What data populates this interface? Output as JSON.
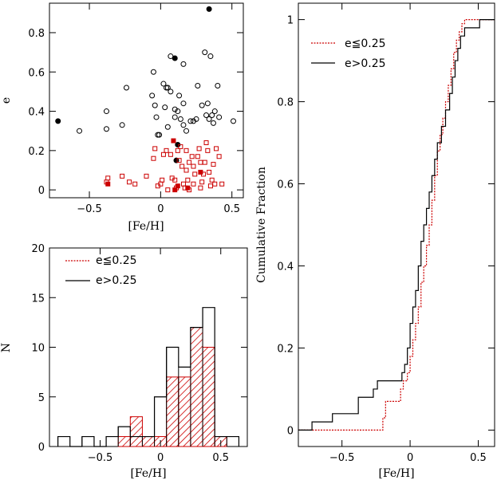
{
  "colors": {
    "low_e": "#cc0000",
    "high_e": "#000000"
  },
  "chart_data": [
    {
      "id": "scatter",
      "type": "scatter",
      "xlabel": "[Fe/H]",
      "ylabel": "e",
      "xlim": [
        -0.78,
        0.58
      ],
      "ylim": [
        -0.04,
        0.95
      ],
      "xticks": [
        -0.5,
        0,
        0.5
      ],
      "xtick_labels": [
        "−0.5",
        "0",
        "0.5"
      ],
      "yticks": [
        0,
        0.2,
        0.4,
        0.6,
        0.8
      ],
      "ytick_labels": [
        "0",
        "0.2",
        "0.4",
        "0.6",
        "0.8"
      ],
      "series": [
        {
          "symbol": "open-circle",
          "color": "#000000",
          "points": [
            [
              -0.57,
              0.3
            ],
            [
              -0.38,
              0.4
            ],
            [
              -0.38,
              0.31
            ],
            [
              -0.27,
              0.33
            ],
            [
              -0.24,
              0.52
            ],
            [
              -0.06,
              0.48
            ],
            [
              -0.05,
              0.6
            ],
            [
              -0.04,
              0.43
            ],
            [
              -0.03,
              0.37
            ],
            [
              -0.02,
              0.28
            ],
            [
              -0.01,
              0.28
            ],
            [
              0.02,
              0.54
            ],
            [
              0.03,
              0.42
            ],
            [
              0.04,
              0.52
            ],
            [
              0.05,
              0.32
            ],
            [
              0.05,
              0.52
            ],
            [
              0.07,
              0.68
            ],
            [
              0.07,
              0.5
            ],
            [
              0.1,
              0.41
            ],
            [
              0.1,
              0.37
            ],
            [
              0.12,
              0.4
            ],
            [
              0.13,
              0.48
            ],
            [
              0.14,
              0.36
            ],
            [
              0.16,
              0.64
            ],
            [
              0.16,
              0.44
            ],
            [
              0.16,
              0.33
            ],
            [
              0.18,
              0.3
            ],
            [
              0.21,
              0.35
            ],
            [
              0.23,
              0.35
            ],
            [
              0.25,
              0.36
            ],
            [
              0.26,
              0.53
            ],
            [
              0.29,
              0.43
            ],
            [
              0.31,
              0.7
            ],
            [
              0.32,
              0.38
            ],
            [
              0.33,
              0.44
            ],
            [
              0.34,
              0.36
            ],
            [
              0.35,
              0.68
            ],
            [
              0.36,
              0.38
            ],
            [
              0.37,
              0.34
            ],
            [
              0.38,
              0.4
            ],
            [
              0.4,
              0.53
            ],
            [
              0.41,
              0.37
            ],
            [
              0.51,
              0.35
            ]
          ]
        },
        {
          "symbol": "filled-circle",
          "color": "#000000",
          "points": [
            [
              -0.72,
              0.35
            ],
            [
              0.1,
              0.67
            ],
            [
              0.11,
              0.15
            ],
            [
              0.12,
              0.23
            ],
            [
              0.34,
              0.92
            ]
          ]
        },
        {
          "symbol": "open-square",
          "color": "#cc0000",
          "points": [
            [
              -0.38,
              0.04
            ],
            [
              -0.37,
              0.06
            ],
            [
              -0.27,
              0.07
            ],
            [
              -0.22,
              0.04
            ],
            [
              -0.18,
              0.03
            ],
            [
              -0.1,
              0.07
            ],
            [
              -0.05,
              0.16
            ],
            [
              -0.04,
              0.21
            ],
            [
              -0.02,
              0.02
            ],
            [
              0.0,
              0.03
            ],
            [
              0.01,
              0.05
            ],
            [
              0.02,
              0.18
            ],
            [
              0.04,
              0.2
            ],
            [
              0.05,
              0.0
            ],
            [
              0.07,
              0.18
            ],
            [
              0.08,
              0.06
            ],
            [
              0.1,
              0.05
            ],
            [
              0.11,
              0.01
            ],
            [
              0.12,
              0.2
            ],
            [
              0.13,
              0.15
            ],
            [
              0.14,
              0.22
            ],
            [
              0.15,
              0.12
            ],
            [
              0.16,
              0.03
            ],
            [
              0.17,
              0.01
            ],
            [
              0.18,
              0.1
            ],
            [
              0.18,
              0.2
            ],
            [
              0.19,
              0.05
            ],
            [
              0.2,
              0.0
            ],
            [
              0.2,
              0.14
            ],
            [
              0.22,
              0.17
            ],
            [
              0.23,
              0.12
            ],
            [
              0.23,
              0.03
            ],
            [
              0.24,
              0.08
            ],
            [
              0.26,
              0.17
            ],
            [
              0.27,
              0.21
            ],
            [
              0.28,
              0.14
            ],
            [
              0.28,
              0.01
            ],
            [
              0.29,
              0.04
            ],
            [
              0.3,
              0.08
            ],
            [
              0.31,
              0.14
            ],
            [
              0.32,
              0.24
            ],
            [
              0.33,
              0.2
            ],
            [
              0.34,
              0.09
            ],
            [
              0.35,
              0.02
            ],
            [
              0.36,
              0.05
            ],
            [
              0.37,
              0.13
            ],
            [
              0.38,
              0.03
            ],
            [
              0.39,
              0.21
            ],
            [
              0.41,
              0.17
            ],
            [
              0.43,
              0.03
            ]
          ]
        },
        {
          "symbol": "filled-square",
          "color": "#cc0000",
          "points": [
            [
              -0.37,
              0.03
            ],
            [
              0.09,
              0.25
            ],
            [
              0.1,
              0.0
            ],
            [
              0.12,
              0.02
            ],
            [
              0.19,
              0.01
            ],
            [
              0.28,
              0.09
            ]
          ]
        }
      ]
    },
    {
      "id": "histogram",
      "type": "bar",
      "xlabel": "[Fe/H]",
      "ylabel": "N",
      "xlim": [
        -0.92,
        0.72
      ],
      "ylim": [
        0,
        20
      ],
      "xticks": [
        -0.5,
        0,
        0.5
      ],
      "xtick_labels": [
        "−0.5",
        "0",
        "0.5"
      ],
      "yticks": [
        0,
        5,
        10,
        15,
        20
      ],
      "ytick_labels": [
        "0",
        "5",
        "10",
        "15",
        "20"
      ],
      "bin_edges": [
        -0.85,
        -0.75,
        -0.65,
        -0.55,
        -0.45,
        -0.35,
        -0.25,
        -0.15,
        -0.05,
        0.05,
        0.15,
        0.25,
        0.35,
        0.45,
        0.55,
        0.65
      ],
      "series": [
        {
          "name": "e≦0.25",
          "style": "hatched",
          "color": "#cc0000",
          "counts": [
            0,
            0,
            0,
            0,
            0,
            1,
            3,
            1,
            1,
            7,
            7,
            12,
            10,
            1,
            0
          ]
        },
        {
          "name": "e>0.25",
          "style": "outline",
          "color": "#000000",
          "counts": [
            1,
            0,
            1,
            0,
            1,
            2,
            1,
            1,
            5,
            10,
            8,
            12,
            14,
            1,
            1
          ]
        }
      ],
      "legend": {
        "position": "top-left",
        "entries": [
          {
            "label": "e≦0.25",
            "color": "#cc0000",
            "style": "dotted"
          },
          {
            "label": "e>0.25",
            "color": "#000000",
            "style": "solid"
          }
        ]
      }
    },
    {
      "id": "cumulative",
      "type": "line",
      "step": true,
      "xlabel": "[Fe/H]",
      "ylabel": "Cumulative Fraction",
      "xlim": [
        -0.82,
        0.62
      ],
      "ylim": [
        -0.04,
        1.04
      ],
      "xticks": [
        -0.5,
        0,
        0.5
      ],
      "xtick_labels": [
        "−0.5",
        "0",
        "0.5"
      ],
      "yticks": [
        0,
        0.2,
        0.4,
        0.6,
        0.8,
        1
      ],
      "ytick_labels": [
        "0",
        "0.2",
        "0.4",
        "0.6",
        "0.8",
        "1"
      ],
      "series": [
        {
          "name": "e≦0.25",
          "color": "#cc0000",
          "style": "dotted",
          "x": [
            -0.82,
            -0.22,
            -0.2,
            -0.18,
            -0.1,
            -0.07,
            -0.05,
            -0.02,
            0.0,
            0.02,
            0.04,
            0.06,
            0.08,
            0.1,
            0.12,
            0.14,
            0.16,
            0.18,
            0.2,
            0.22,
            0.24,
            0.26,
            0.28,
            0.3,
            0.32,
            0.34,
            0.36,
            0.38,
            0.4,
            0.43,
            0.62
          ],
          "y": [
            0,
            0,
            0.03,
            0.07,
            0.07,
            0.1,
            0.12,
            0.14,
            0.18,
            0.22,
            0.26,
            0.3,
            0.36,
            0.4,
            0.45,
            0.5,
            0.56,
            0.62,
            0.68,
            0.72,
            0.76,
            0.8,
            0.84,
            0.88,
            0.92,
            0.95,
            0.97,
            0.99,
            1,
            1,
            1
          ]
        },
        {
          "name": "e>0.25",
          "color": "#000000",
          "style": "solid",
          "x": [
            -0.82,
            -0.72,
            -0.57,
            -0.38,
            -0.27,
            -0.24,
            -0.06,
            -0.04,
            -0.02,
            0.0,
            0.02,
            0.04,
            0.06,
            0.08,
            0.1,
            0.12,
            0.14,
            0.16,
            0.18,
            0.2,
            0.23,
            0.26,
            0.29,
            0.31,
            0.33,
            0.35,
            0.37,
            0.4,
            0.45,
            0.51,
            0.62
          ],
          "y": [
            0,
            0.02,
            0.04,
            0.08,
            0.1,
            0.12,
            0.14,
            0.16,
            0.2,
            0.26,
            0.3,
            0.34,
            0.4,
            0.46,
            0.5,
            0.54,
            0.58,
            0.62,
            0.66,
            0.7,
            0.74,
            0.78,
            0.82,
            0.86,
            0.9,
            0.93,
            0.96,
            0.98,
            0.98,
            1,
            1
          ]
        }
      ],
      "legend": {
        "position": "top-left",
        "entries": [
          {
            "label": "e≦0.25",
            "color": "#cc0000",
            "style": "dotted"
          },
          {
            "label": "e>0.25",
            "color": "#000000",
            "style": "solid"
          }
        ]
      }
    }
  ]
}
